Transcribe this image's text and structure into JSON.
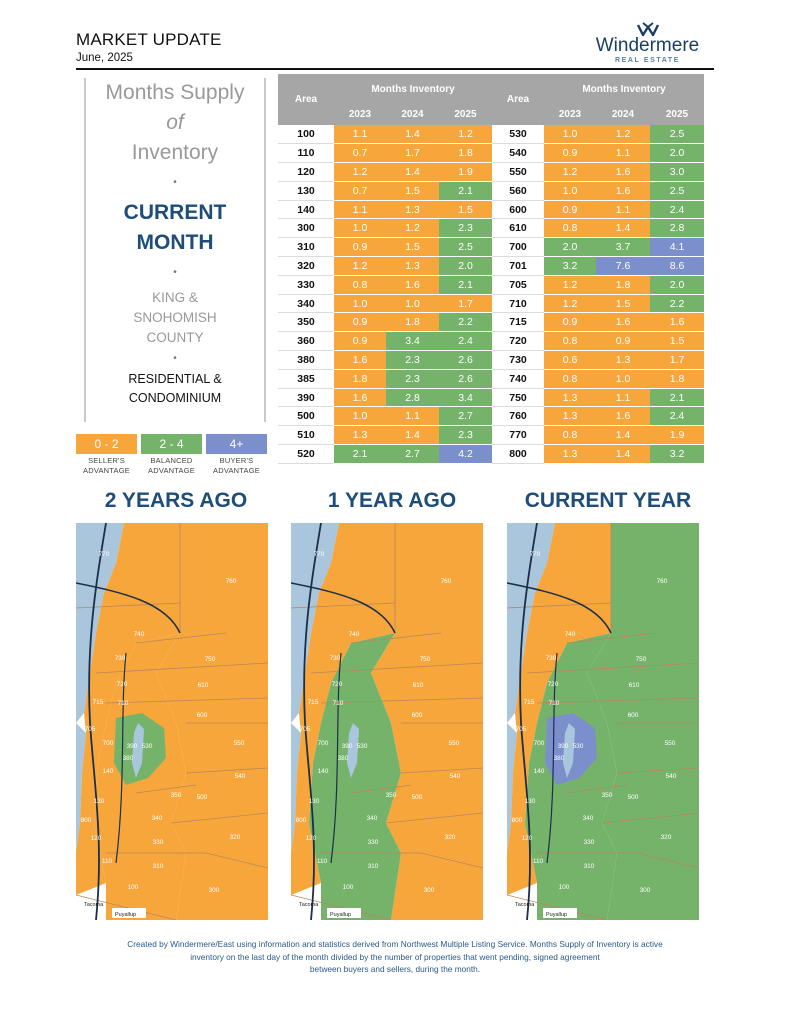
{
  "header": {
    "title": "MARKET UPDATE",
    "date": "June, 2025",
    "logo_name": "Windermere",
    "logo_sub": "REAL ESTATE"
  },
  "left_panel": {
    "line1": "Months Supply",
    "line2": "of",
    "line3": "Inventory",
    "current1": "CURRENT",
    "current2": "MONTH",
    "county1": "KING &",
    "county2": "SNOHOMISH",
    "county3": "COUNTY",
    "res1": "RESIDENTIAL &",
    "res2": "CONDOMINIUM",
    "dot": "•"
  },
  "legend": [
    {
      "range": "0 - 2",
      "line1": "SELLER'S",
      "line2": "ADVANTAGE",
      "color": "#f7a63c"
    },
    {
      "range": "2 - 4",
      "line1": "BALANCED",
      "line2": "ADVANTAGE",
      "color": "#75b36b"
    },
    {
      "range": "4+",
      "line1": "BUYER'S",
      "line2": "ADVANTAGE",
      "color": "#7b8fcc"
    }
  ],
  "colors": {
    "seller": "#f7a63c",
    "balanced": "#75b36b",
    "buyer": "#7b8fcc",
    "water": "#a9c6dc"
  },
  "table": {
    "area_header": "Area",
    "group_header": "Months Inventory",
    "years": [
      "2023",
      "2024",
      "2025"
    ],
    "left_rows": [
      {
        "area": "100",
        "v": [
          "1.1",
          "1.4",
          "1.2"
        ]
      },
      {
        "area": "110",
        "v": [
          "0.7",
          "1.7",
          "1.8"
        ]
      },
      {
        "area": "120",
        "v": [
          "1.2",
          "1.4",
          "1.9"
        ]
      },
      {
        "area": "130",
        "v": [
          "0.7",
          "1.5",
          "2.1"
        ]
      },
      {
        "area": "140",
        "v": [
          "1.1",
          "1.3",
          "1.5"
        ]
      },
      {
        "area": "300",
        "v": [
          "1.0",
          "1.2",
          "2.3"
        ]
      },
      {
        "area": "310",
        "v": [
          "0.9",
          "1.5",
          "2.5"
        ]
      },
      {
        "area": "320",
        "v": [
          "1.2",
          "1.3",
          "2.0"
        ]
      },
      {
        "area": "330",
        "v": [
          "0.8",
          "1.6",
          "2.1"
        ]
      },
      {
        "area": "340",
        "v": [
          "1.0",
          "1.0",
          "1.7"
        ]
      },
      {
        "area": "350",
        "v": [
          "0.9",
          "1.8",
          "2.2"
        ]
      },
      {
        "area": "360",
        "v": [
          "0.9",
          "3.4",
          "2.4"
        ]
      },
      {
        "area": "380",
        "v": [
          "1.6",
          "2.3",
          "2.6"
        ]
      },
      {
        "area": "385",
        "v": [
          "1.8",
          "2.3",
          "2.6"
        ]
      },
      {
        "area": "390",
        "v": [
          "1.6",
          "2.8",
          "3.4"
        ]
      },
      {
        "area": "500",
        "v": [
          "1.0",
          "1.1",
          "2.7"
        ]
      },
      {
        "area": "510",
        "v": [
          "1.3",
          "1.4",
          "2.3"
        ]
      },
      {
        "area": "520",
        "v": [
          "2.1",
          "2.7",
          "4.2"
        ]
      }
    ],
    "right_rows": [
      {
        "area": "530",
        "v": [
          "1.0",
          "1.2",
          "2.5"
        ]
      },
      {
        "area": "540",
        "v": [
          "0.9",
          "1.1",
          "2.0"
        ]
      },
      {
        "area": "550",
        "v": [
          "1.2",
          "1.6",
          "3.0"
        ]
      },
      {
        "area": "560",
        "v": [
          "1.0",
          "1.6",
          "2.5"
        ]
      },
      {
        "area": "600",
        "v": [
          "0.9",
          "1.1",
          "2.4"
        ]
      },
      {
        "area": "610",
        "v": [
          "0.8",
          "1.4",
          "2.8"
        ]
      },
      {
        "area": "700",
        "v": [
          "2.0",
          "3.7",
          "4.1"
        ]
      },
      {
        "area": "701",
        "v": [
          "3.2",
          "7.6",
          "8.6"
        ]
      },
      {
        "area": "705",
        "v": [
          "1.2",
          "1.8",
          "2.0"
        ]
      },
      {
        "area": "710",
        "v": [
          "1.2",
          "1.5",
          "2.2"
        ]
      },
      {
        "area": "715",
        "v": [
          "0.9",
          "1.6",
          "1.6"
        ]
      },
      {
        "area": "720",
        "v": [
          "0.8",
          "0.9",
          "1.5"
        ]
      },
      {
        "area": "730",
        "v": [
          "0.6",
          "1.3",
          "1.7"
        ]
      },
      {
        "area": "740",
        "v": [
          "0.8",
          "1.0",
          "1.8"
        ]
      },
      {
        "area": "750",
        "v": [
          "1.3",
          "1.1",
          "2.1"
        ]
      },
      {
        "area": "760",
        "v": [
          "1.3",
          "1.6",
          "2.4"
        ]
      },
      {
        "area": "770",
        "v": [
          "0.8",
          "1.4",
          "1.9"
        ]
      },
      {
        "area": "800",
        "v": [
          "1.3",
          "1.4",
          "3.2"
        ]
      }
    ]
  },
  "maps": {
    "titles": [
      "2 YEARS AGO",
      "1 YEAR AGO",
      "CURRENT YEAR"
    ],
    "labels": [
      {
        "key": "770",
        "text": "770"
      },
      {
        "key": "760",
        "text": "760"
      },
      {
        "key": "740",
        "text": "740"
      },
      {
        "key": "750",
        "text": "750"
      },
      {
        "key": "730",
        "text": "730"
      },
      {
        "key": "610",
        "text": "610"
      },
      {
        "key": "720",
        "text": "720"
      },
      {
        "key": "600",
        "text": "600"
      },
      {
        "key": "715",
        "text": "715"
      },
      {
        "key": "710",
        "text": "710"
      },
      {
        "key": "705",
        "text": "705"
      },
      {
        "key": "700",
        "text": "700"
      },
      {
        "key": "390",
        "text": "390"
      },
      {
        "key": "530",
        "text": "530"
      },
      {
        "key": "550",
        "text": "550"
      },
      {
        "key": "540",
        "text": "540"
      },
      {
        "key": "380",
        "text": "380"
      },
      {
        "key": "140",
        "text": "140"
      },
      {
        "key": "350",
        "text": "350"
      },
      {
        "key": "500",
        "text": "500"
      },
      {
        "key": "130",
        "text": "130"
      },
      {
        "key": "340",
        "text": "340"
      },
      {
        "key": "800",
        "text": "800"
      },
      {
        "key": "330",
        "text": "330"
      },
      {
        "key": "320",
        "text": "320"
      },
      {
        "key": "120",
        "text": "120"
      },
      {
        "key": "310",
        "text": "310"
      },
      {
        "key": "110",
        "text": "110"
      },
      {
        "key": "100",
        "text": "100"
      },
      {
        "key": "300",
        "text": "300"
      }
    ],
    "place_names": {
      "tacoma": "Tacoma",
      "puyallup": "Puyallup"
    },
    "region_status": [
      {
        "west": "seller",
        "east": "seller",
        "center": "seller",
        "core": "balanced"
      },
      {
        "west": "seller",
        "east": "seller",
        "center": "balanced",
        "core": "balanced"
      },
      {
        "west": "seller",
        "east": "balanced",
        "center": "balanced",
        "core": "buyer"
      }
    ]
  },
  "footer": {
    "line1": "Created by Windermere/East using information and statistics derived from Northwest Multiple Listing Service. Months Supply of Inventory is active",
    "line2": "inventory on the last day of the month divided by the number of properties that went pending, signed agreement",
    "line3": "between buyers and sellers, during the month."
  }
}
